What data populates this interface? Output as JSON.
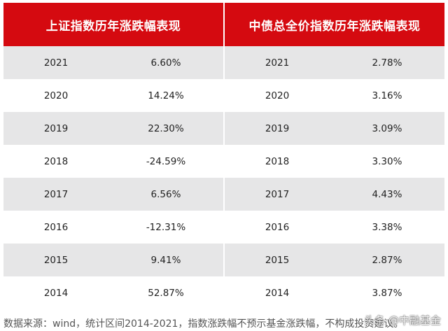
{
  "left_table": {
    "title": "上证指数历年涨跌幅表现",
    "rows": [
      {
        "year": "2021",
        "value": "6.60%"
      },
      {
        "year": "2020",
        "value": "14.24%"
      },
      {
        "year": "2019",
        "value": "22.30%"
      },
      {
        "year": "2018",
        "value": "-24.59%"
      },
      {
        "year": "2017",
        "value": "6.56%"
      },
      {
        "year": "2016",
        "value": "-12.31%"
      },
      {
        "year": "2015",
        "value": "9.41%"
      },
      {
        "year": "2014",
        "value": "52.87%"
      }
    ]
  },
  "right_table": {
    "title": "中债总全价指数历年涨跌幅表现",
    "rows": [
      {
        "year": "2021",
        "value": "2.78%"
      },
      {
        "year": "2020",
        "value": "3.16%"
      },
      {
        "year": "2019",
        "value": "3.09%"
      },
      {
        "year": "2018",
        "value": "3.30%"
      },
      {
        "year": "2017",
        "value": "4.43%"
      },
      {
        "year": "2016",
        "value": "3.38%"
      },
      {
        "year": "2015",
        "value": "2.87%"
      },
      {
        "year": "2014",
        "value": "3.87%"
      }
    ]
  },
  "footnote": "数据来源：wind，统计区间2014-2021，指数涨跌幅不预示基金涨跌幅，不构成投资建议。",
  "watermark": "头条 @中融基金",
  "colors": {
    "header_bg": "#d50a10",
    "stripe": "#e6e6e7"
  }
}
